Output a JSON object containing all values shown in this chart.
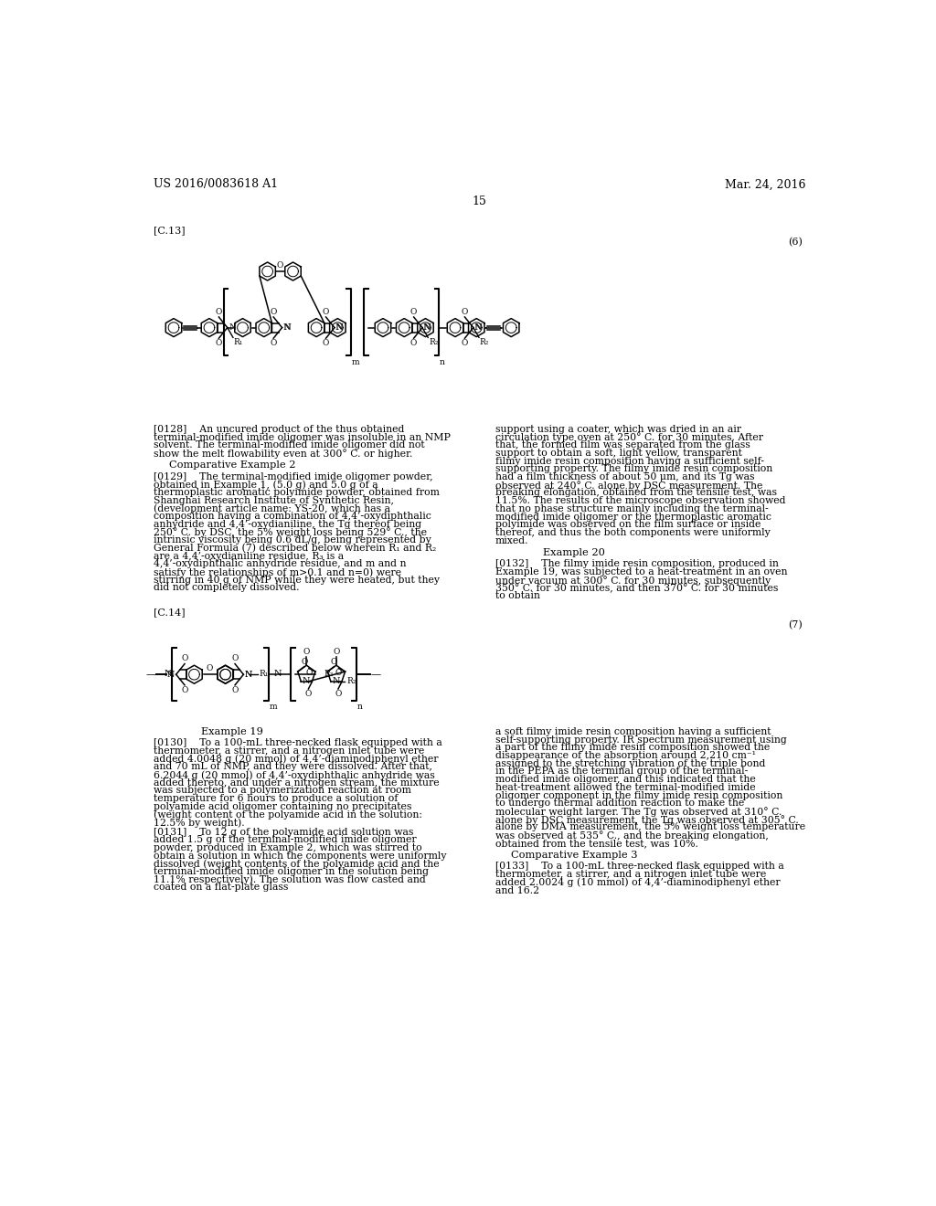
{
  "background_color": "#ffffff",
  "header_left": "US 2016/0083618 A1",
  "header_right": "Mar. 24, 2016",
  "page_number": "15",
  "label_c13": "[C.13]",
  "formula_number_6": "(6)",
  "label_c14": "[C.14]",
  "formula_number_7": "(7)",
  "section_comp_ex2": "Comparative Example 2",
  "section_ex19": "Example 19",
  "section_ex20": "Example 20",
  "section_comp_ex3": "Comparative Example 3"
}
